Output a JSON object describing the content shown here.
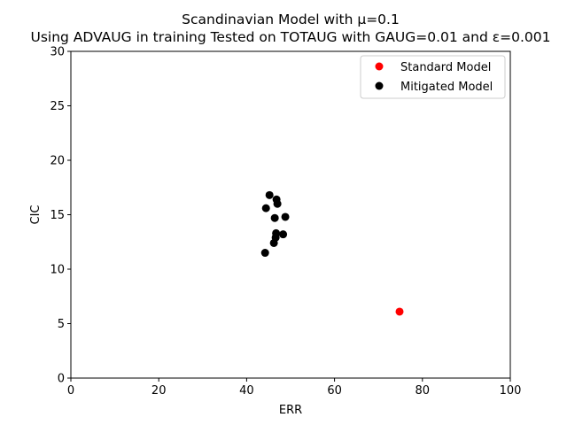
{
  "chart_data": {
    "type": "scatter",
    "title_line1": "Scandinavian Model with μ=0.1",
    "title_line2": "Using ADVAUG in training Tested on TOTAUG with GAUG=0.01 and ε=0.001",
    "xlabel": "ERR",
    "ylabel": "CIC",
    "xlim": [
      0,
      100
    ],
    "ylim": [
      0,
      30
    ],
    "xticks": [
      0,
      20,
      40,
      60,
      80,
      100
    ],
    "yticks": [
      0,
      5,
      10,
      15,
      20,
      25,
      30
    ],
    "grid": false,
    "legend_position": "top-right",
    "series": [
      {
        "name": "Standard Model",
        "color": "#ff0000",
        "points": [
          [
            74.8,
            6.1
          ]
        ]
      },
      {
        "name": "Mitigated Model",
        "color": "#000000",
        "points": [
          [
            45.2,
            16.8
          ],
          [
            46.8,
            16.4
          ],
          [
            47.0,
            16.0
          ],
          [
            44.4,
            15.6
          ],
          [
            46.4,
            14.7
          ],
          [
            48.8,
            14.8
          ],
          [
            46.7,
            13.3
          ],
          [
            48.3,
            13.2
          ],
          [
            46.6,
            12.9
          ],
          [
            46.2,
            12.4
          ],
          [
            44.2,
            11.5
          ]
        ]
      }
    ]
  }
}
